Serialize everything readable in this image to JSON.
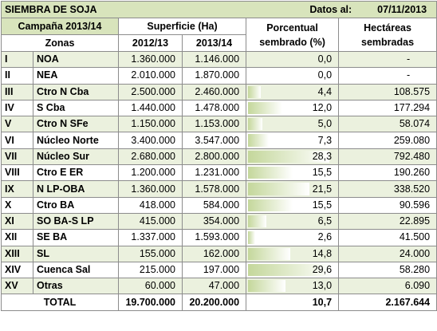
{
  "title": "SIEMBRA DE SOJA",
  "date_label": "Datos al:",
  "date_value": "07/11/2013",
  "headers": {
    "campania": "Campaña 2013/14",
    "superficie": "Superficie (Ha)",
    "porcentual_1": "Porcentual",
    "porcentual_2": "sembrado (%)",
    "hectareas_1": "Hectáreas",
    "hectareas_2": "sembradas",
    "zonas": "Zonas",
    "y2012": "2012/13",
    "y2013": "2013/14"
  },
  "rows": [
    {
      "roman": "I",
      "zona": "NOA",
      "s2012": "1.360.000",
      "s2013": "1.146.000",
      "pct": "0,0",
      "pct_value": 0.0,
      "ha": "-"
    },
    {
      "roman": "II",
      "zona": "NEA",
      "s2012": "2.010.000",
      "s2013": "1.870.000",
      "pct": "0,0",
      "pct_value": 0.0,
      "ha": "-"
    },
    {
      "roman": "III",
      "zona": "Ctro N Cba",
      "s2012": "2.500.000",
      "s2013": "2.460.000",
      "pct": "4,4",
      "pct_value": 4.4,
      "ha": "108.575"
    },
    {
      "roman": "IV",
      "zona": "S Cba",
      "s2012": "1.440.000",
      "s2013": "1.478.000",
      "pct": "12,0",
      "pct_value": 12.0,
      "ha": "177.294"
    },
    {
      "roman": "V",
      "zona": "Ctro N SFe",
      "s2012": "1.150.000",
      "s2013": "1.153.000",
      "pct": "5,0",
      "pct_value": 5.0,
      "ha": "58.074"
    },
    {
      "roman": "VI",
      "zona": "Núcleo Norte",
      "s2012": "3.400.000",
      "s2013": "3.547.000",
      "pct": "7,3",
      "pct_value": 7.3,
      "ha": "259.080"
    },
    {
      "roman": "VII",
      "zona": "Núcleo Sur",
      "s2012": "2.680.000",
      "s2013": "2.800.000",
      "pct": "28,3",
      "pct_value": 28.3,
      "ha": "792.480"
    },
    {
      "roman": "VIII",
      "zona": "Ctro E ER",
      "s2012": "1.200.000",
      "s2013": "1.231.000",
      "pct": "15,5",
      "pct_value": 15.5,
      "ha": "190.260"
    },
    {
      "roman": "IX",
      "zona": "N LP-OBA",
      "s2012": "1.360.000",
      "s2013": "1.578.000",
      "pct": "21,5",
      "pct_value": 21.5,
      "ha": "338.520"
    },
    {
      "roman": "X",
      "zona": "Ctro BA",
      "s2012": "418.000",
      "s2013": "584.000",
      "pct": "15,5",
      "pct_value": 15.5,
      "ha": "90.596"
    },
    {
      "roman": "XI",
      "zona": "SO BA-S LP",
      "s2012": "415.000",
      "s2013": "354.000",
      "pct": "6,5",
      "pct_value": 6.5,
      "ha": "22.895"
    },
    {
      "roman": "XII",
      "zona": "SE BA",
      "s2012": "1.337.000",
      "s2013": "1.593.000",
      "pct": "2,6",
      "pct_value": 2.6,
      "ha": "41.500"
    },
    {
      "roman": "XIII",
      "zona": "SL",
      "s2012": "155.000",
      "s2013": "162.000",
      "pct": "14,8",
      "pct_value": 14.8,
      "ha": "24.000"
    },
    {
      "roman": "XIV",
      "zona": "Cuenca Sal",
      "s2012": "215.000",
      "s2013": "197.000",
      "pct": "29,6",
      "pct_value": 29.6,
      "ha": "58.280"
    },
    {
      "roman": "XV",
      "zona": "Otras",
      "s2012": "60.000",
      "s2013": "47.000",
      "pct": "13,0",
      "pct_value": 13.0,
      "ha": "6.090"
    }
  ],
  "total": {
    "label": "TOTAL",
    "s2012": "19.700.000",
    "s2013": "20.200.000",
    "pct": "10,7",
    "ha": "2.167.644"
  },
  "colors": {
    "header_green": "#d8e4bc",
    "band_green": "#ebf1de",
    "bar_green": "#c4d79b"
  }
}
